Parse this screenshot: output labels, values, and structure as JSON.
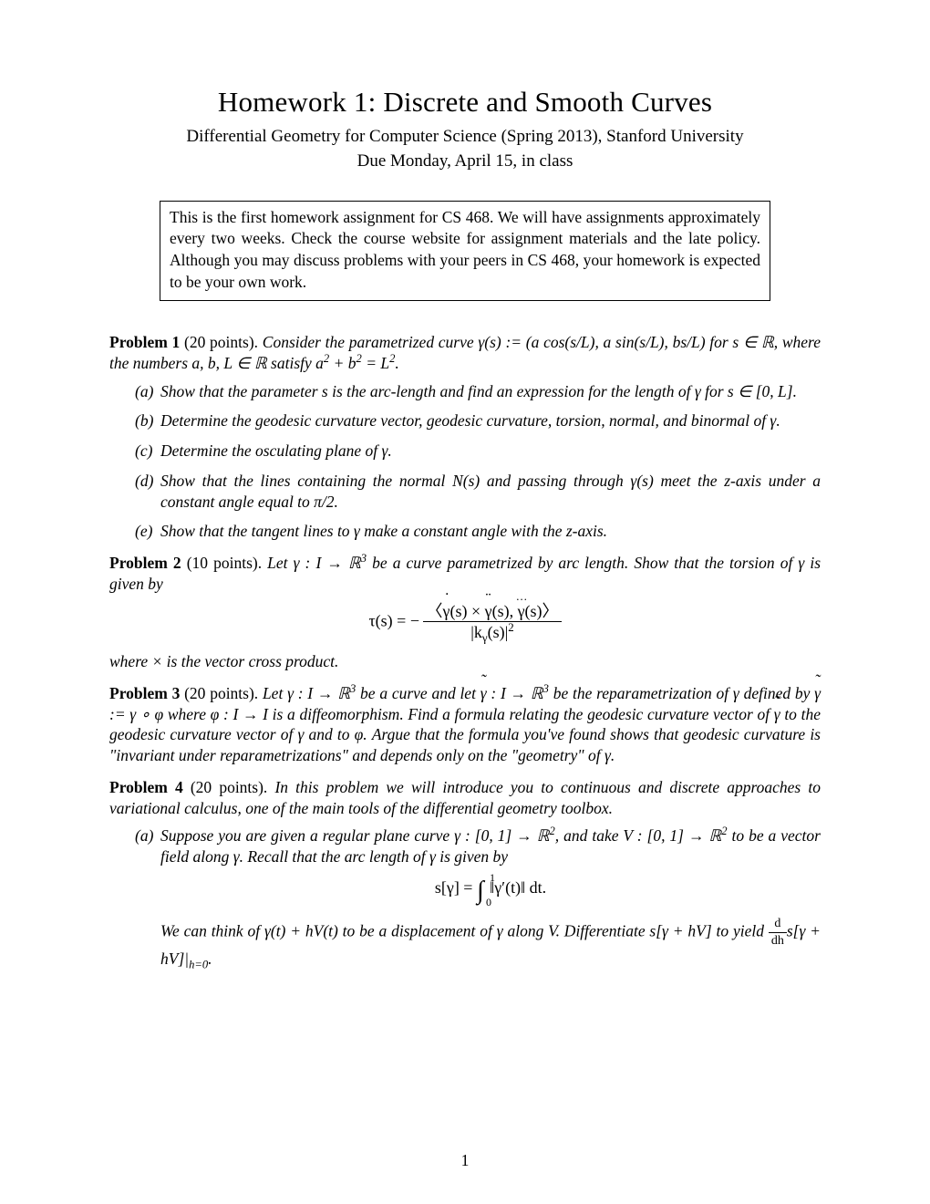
{
  "title": "Homework 1: Discrete and Smooth Curves",
  "subtitle": "Differential Geometry for Computer Science (Spring 2013), Stanford University",
  "due": "Due Monday, April 15, in class",
  "notebox": "This is the first homework assignment for CS 468. We will have assignments approximately every two weeks. Check the course website for assignment materials and the late policy. Although you may discuss problems with your peers in CS 468, your homework is expected to be your own work.",
  "p1": {
    "label": "Problem 1",
    "pts": "(20 points).",
    "body_pre": "Consider the parametrized curve γ(s) := (a cos(s/L), a sin(s/L), bs/L) for s ∈ ℝ, where the numbers a, b, L ∈ ℝ satisfy a",
    "body_sup": "2",
    "body_mid": " + b",
    "body_sup2": "2",
    "body_post": " = L",
    "body_sup3": "2",
    "body_end": ".",
    "a": "Show that the parameter s is the arc-length and find an expression for the length of γ for s ∈ [0, L].",
    "b": "Determine the geodesic curvature vector, geodesic curvature, torsion, normal, and binormal of γ.",
    "c": "Determine the osculating plane of γ.",
    "d": "Show that the lines containing the normal N(s) and passing through γ(s) meet the z-axis under a constant angle equal to π/2.",
    "e": "Show that the tangent lines to γ make a constant angle with the z-axis."
  },
  "p2": {
    "label": "Problem 2",
    "pts": "(10 points).",
    "body1": "Let γ : I → ℝ",
    "sup1": "3",
    "body2": " be a curve parametrized by arc length. Show that the torsion of γ is given by",
    "tau_lhs": "τ(s) = −",
    "tau_num_open": "〈",
    "tau_num_g1": "γ",
    "tau_num_mid1": "(s) × ",
    "tau_num_g2": "γ",
    "tau_num_mid2": "(s), ",
    "tau_num_g3": "γ",
    "tau_num_close": "(s)〉",
    "tau_den_pre": "|k",
    "tau_den_sub": "γ",
    "tau_den_mid": "(s)|",
    "tau_den_sup": "2",
    "tail": "where × is the vector cross product."
  },
  "p3": {
    "label": "Problem 3",
    "pts": "(20 points).",
    "b1": "Let γ : I → ℝ",
    "s1": "3",
    "b2": " be a curve and let ",
    "g2": "γ",
    "b3": " : I → ℝ",
    "s2": "3",
    "b4": " be the reparametrization of γ defined by ",
    "g3": "γ",
    "b5": " := γ ∘ φ where φ : I → I is a diffeomorphism. Find a formula relating the geodesic curvature vector of ",
    "g4": "γ",
    "b6": " to the geodesic curvature vector of γ and to φ. Argue that the formula you've found shows that geodesic curvature is \"invariant under reparametrizations\" and depends only on the \"geometry\" of γ."
  },
  "p4": {
    "label": "Problem 4",
    "pts": "(20 points).",
    "intro": "In this problem we will introduce you to continuous and discrete approaches to variational calculus, one of the main tools of the differential geometry toolbox.",
    "a1": "Suppose you are given a regular plane curve γ : [0, 1] → ℝ",
    "as1": "2",
    "a2": ", and take V : [0, 1] → ℝ",
    "as2": "2",
    "a3": " to be a vector field along γ. Recall that the arc length of γ is given by",
    "disp_lhs": "s[γ] = ",
    "disp_int_lo": "0",
    "disp_int_up": "1",
    "disp_body": " ‖γ′(t)‖ dt.",
    "a4": "We can think of γ(t) + hV(t) to be a displacement of γ along V. Differentiate s[γ + hV] to yield ",
    "fr_num": "d",
    "fr_den": "dh",
    "a5": "s[γ + hV]|",
    "a5sub": "h=0",
    "a6": "."
  },
  "pageno": "1"
}
